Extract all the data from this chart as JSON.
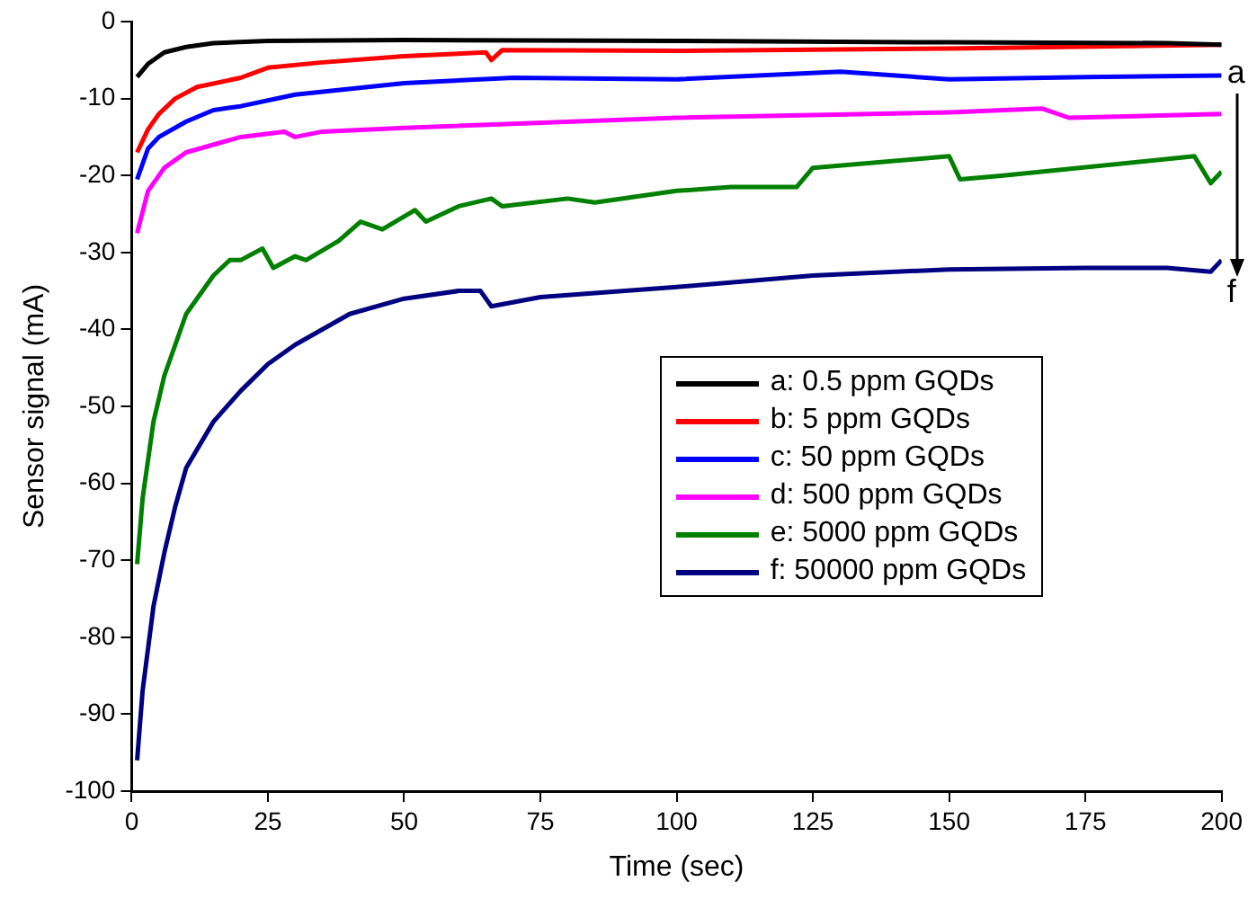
{
  "chart_data": {
    "type": "line",
    "xlabel": "Time (sec)",
    "ylabel": "Sensor signal (mA)",
    "xlim": [
      0,
      200
    ],
    "ylim": [
      -100,
      0
    ],
    "xticks": [
      0,
      25,
      50,
      75,
      100,
      125,
      150,
      175,
      200
    ],
    "yticks": [
      -100,
      -90,
      -80,
      -70,
      -60,
      -50,
      -40,
      -30,
      -20,
      -10,
      0
    ],
    "grid": false,
    "legend": "center right",
    "marker": "none",
    "line_style": "solid",
    "annotations": [
      "a",
      "f"
    ],
    "series": [
      {
        "name": "a: 0.5 ppm GQDs",
        "color": "#000000",
        "x": [
          1,
          3,
          6,
          10,
          15,
          25,
          50,
          100,
          150,
          190,
          200
        ],
        "values": [
          -7.2,
          -5.5,
          -4,
          -3.3,
          -2.8,
          -2.5,
          -2.4,
          -2.5,
          -2.7,
          -2.8,
          -3
        ]
      },
      {
        "name": "b: 5 ppm GQDs",
        "color": "#ff0000",
        "x": [
          1,
          3,
          5,
          8,
          12,
          20,
          25,
          35,
          50,
          65,
          66,
          68,
          100,
          150,
          200
        ],
        "values": [
          -17,
          -14,
          -12,
          -10,
          -8.5,
          -7.3,
          -6,
          -5.3,
          -4.5,
          -4,
          -5,
          -3.7,
          -3.8,
          -3.5,
          -3
        ]
      },
      {
        "name": "c: 50 ppm GQDs",
        "color": "#0000ff",
        "x": [
          1,
          3,
          5,
          10,
          15,
          20,
          30,
          50,
          70,
          100,
          130,
          150,
          175,
          200
        ],
        "values": [
          -20.5,
          -16.5,
          -15,
          -13,
          -11.5,
          -11,
          -9.5,
          -8,
          -7.3,
          -7.5,
          -6.5,
          -7.5,
          -7.2,
          -7
        ]
      },
      {
        "name": "d: 500 ppm GQDs",
        "color": "#ff00ff",
        "x": [
          1,
          3,
          6,
          10,
          20,
          28,
          30,
          35,
          50,
          100,
          150,
          167,
          172,
          200
        ],
        "values": [
          -27.5,
          -22,
          -19,
          -17,
          -15,
          -14.3,
          -15,
          -14.3,
          -13.8,
          -12.5,
          -11.8,
          -11.3,
          -12.5,
          -12
        ]
      },
      {
        "name": "e: 5000 ppm GQDs",
        "color": "#008000",
        "x": [
          1,
          2,
          4,
          6,
          8,
          10,
          15,
          18,
          20,
          24,
          26,
          30,
          32,
          38,
          42,
          46,
          52,
          54,
          60,
          66,
          68,
          80,
          85,
          100,
          110,
          122,
          125,
          150,
          152,
          160,
          195,
          198,
          200
        ],
        "values": [
          -70.5,
          -62,
          -52,
          -46,
          -42,
          -38,
          -33,
          -31,
          -31,
          -29.5,
          -32,
          -30.5,
          -31,
          -28.5,
          -26,
          -27,
          -24.5,
          -26,
          -24,
          -23,
          -24,
          -23,
          -23.5,
          -22,
          -21.5,
          -21.5,
          -19,
          -17.5,
          -20.5,
          -20,
          -17.5,
          -21,
          -19.5
        ]
      },
      {
        "name": "f: 50000 ppm GQDs",
        "color": "#000080",
        "x": [
          1,
          2,
          4,
          6,
          8,
          10,
          15,
          20,
          25,
          30,
          40,
          50,
          60,
          64,
          66,
          75,
          100,
          125,
          150,
          175,
          190,
          198,
          200
        ],
        "values": [
          -96,
          -87,
          -76,
          -69,
          -63,
          -58,
          -52,
          -48,
          -44.5,
          -42,
          -38,
          -36,
          -35,
          -35,
          -37,
          -35.8,
          -34.5,
          -33,
          -32.2,
          -32,
          -32,
          -32.5,
          -31
        ]
      }
    ]
  }
}
